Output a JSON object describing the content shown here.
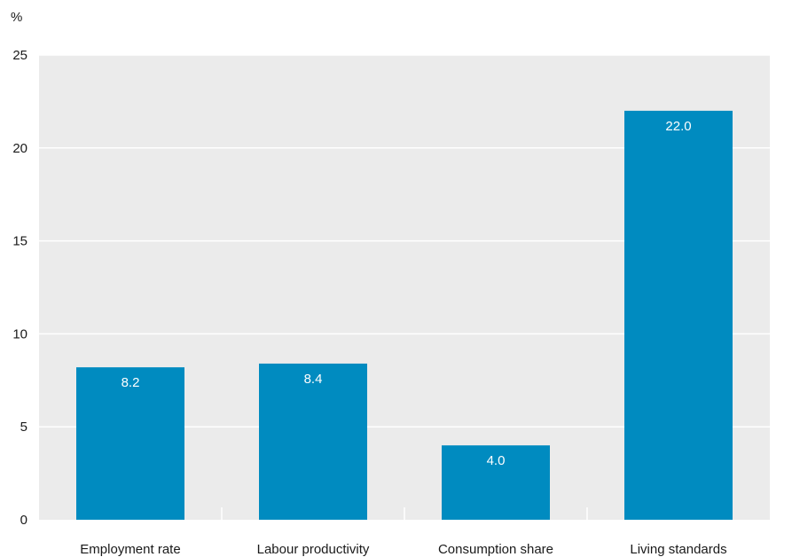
{
  "chart_data": {
    "type": "bar",
    "unit": "%",
    "categories": [
      "Employment rate",
      "Labour productivity",
      "Consumption share",
      "Living standards"
    ],
    "values": [
      8.2,
      8.4,
      4.0,
      22.0
    ],
    "data_labels": [
      "8.2",
      "8.4",
      "4.0",
      "22.0"
    ],
    "ylim": [
      0,
      25
    ],
    "yticks": [
      0,
      5,
      10,
      15,
      20,
      25
    ],
    "grid": true,
    "colors": {
      "bar": "#008bc0",
      "plot_background": "#ebebeb",
      "gridline": "#ffffff",
      "data_label": "#ffffff"
    }
  }
}
